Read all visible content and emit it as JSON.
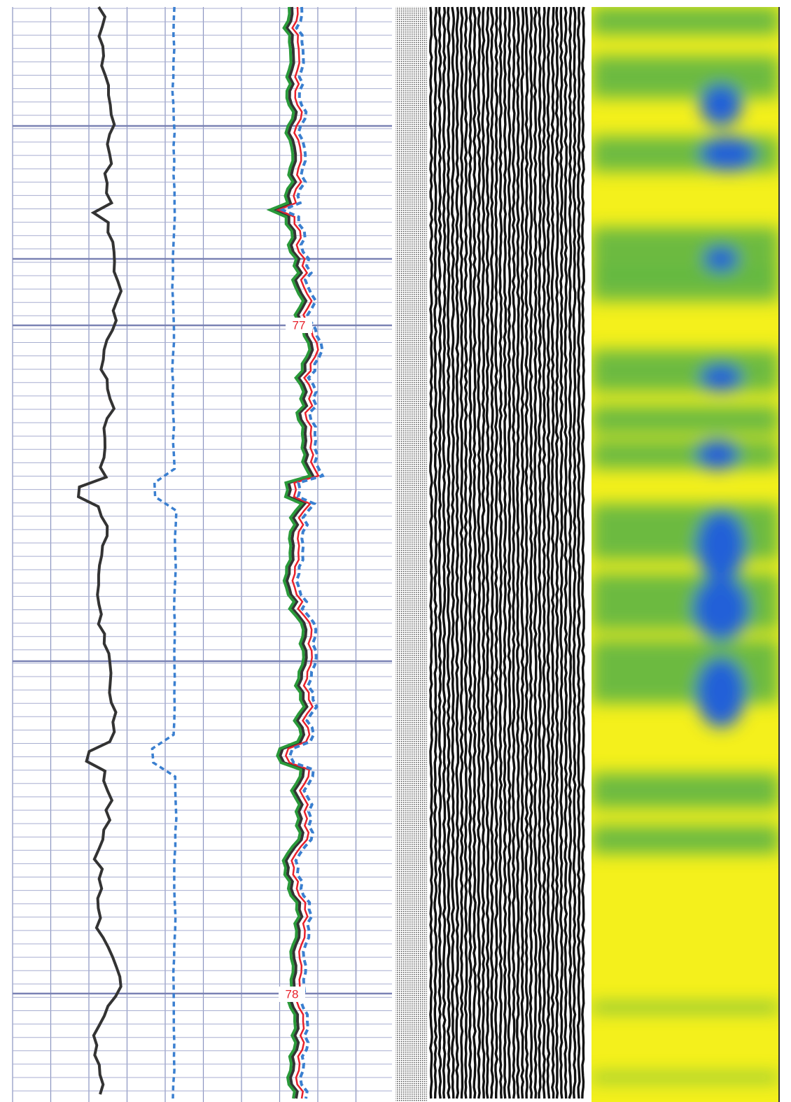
{
  "depth_track": {
    "labels": [
      "77",
      "78"
    ]
  }
}
